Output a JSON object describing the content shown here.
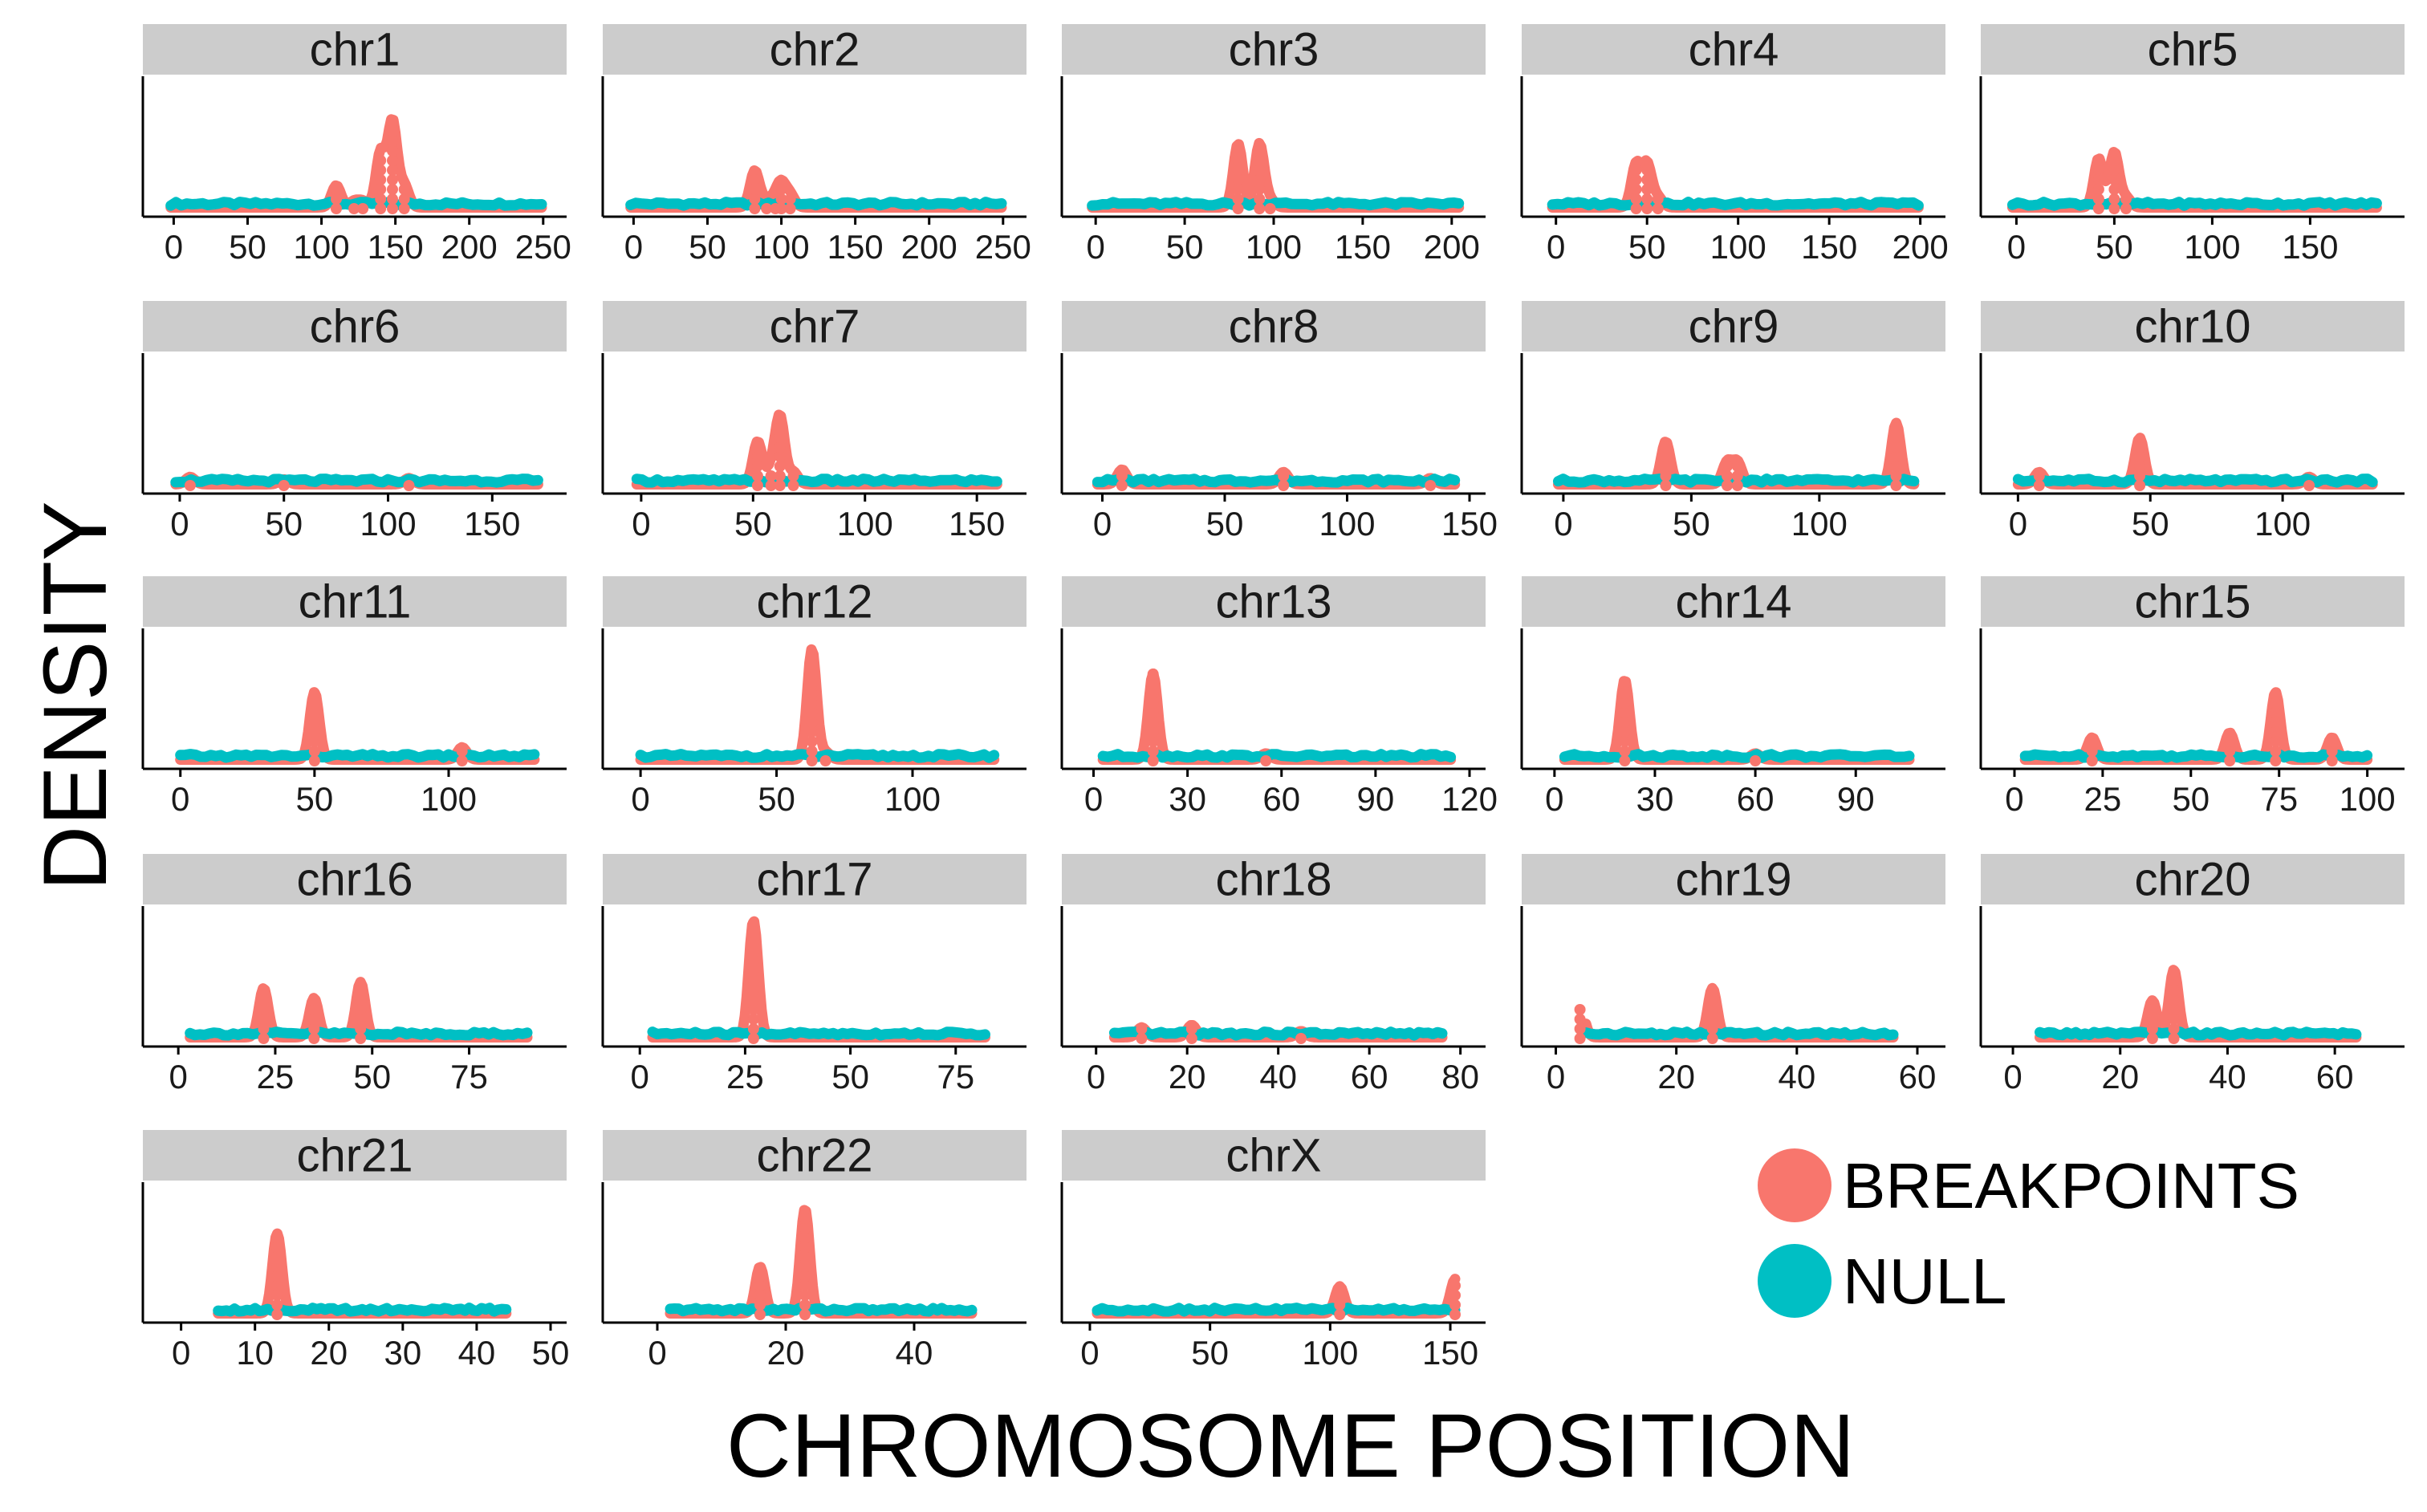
{
  "chart_data": {
    "type": "line",
    "ylabel": "DENSITY",
    "xlabel": "CHROMOSOME POSITION",
    "legend": {
      "placement": "bottom-right",
      "entries": [
        {
          "name": "BREAKPOINTS",
          "color": "#F8766D"
        },
        {
          "name": "NULL",
          "color": "#00BFC4"
        }
      ]
    },
    "strip_color": "#cccccc",
    "facets": [
      {
        "name": "chr1",
        "ticks": [
          0,
          50,
          100,
          150,
          200,
          250
        ],
        "xlim": [
          -10,
          255
        ],
        "ymax": 1,
        "series": {
          "BREAKPOINTS": [
            [
              110,
              0.18
            ],
            [
              122,
              0.05
            ],
            [
              128,
              0.05
            ],
            [
              140,
              0.45
            ],
            [
              148,
              0.7
            ],
            [
              156,
              0.18
            ]
          ],
          "NULL": []
        }
      },
      {
        "name": "chr2",
        "ticks": [
          0,
          50,
          100,
          150,
          200,
          250
        ],
        "xlim": [
          -10,
          255
        ],
        "ymax": 1,
        "series": {
          "BREAKPOINTS": [
            [
              82,
              0.3
            ],
            [
              90,
              0.06
            ],
            [
              96,
              0.06
            ],
            [
              100,
              0.18
            ],
            [
              106,
              0.1
            ]
          ],
          "NULL": []
        }
      },
      {
        "name": "chr3",
        "ticks": [
          0,
          50,
          100,
          150,
          200
        ],
        "xlim": [
          -10,
          210
        ],
        "ymax": 1,
        "series": {
          "BREAKPOINTS": [
            [
              80,
              0.52
            ],
            [
              92,
              0.52
            ],
            [
              98,
              0.06
            ]
          ],
          "NULL": []
        }
      },
      {
        "name": "chr4",
        "ticks": [
          0,
          50,
          100,
          150,
          200
        ],
        "xlim": [
          -10,
          205
        ],
        "ymax": 1,
        "series": {
          "BREAKPOINTS": [
            [
              44,
              0.35
            ],
            [
              50,
              0.35
            ],
            [
              56,
              0.08
            ]
          ],
          "NULL": []
        }
      },
      {
        "name": "chr5",
        "ticks": [
          0,
          50,
          100,
          150
        ],
        "xlim": [
          -10,
          190
        ],
        "ymax": 1,
        "series": {
          "BREAKPOINTS": [
            [
              42,
              0.4
            ],
            [
              50,
              0.45
            ],
            [
              56,
              0.08
            ]
          ],
          "NULL": []
        }
      },
      {
        "name": "chr6",
        "ticks": [
          0,
          50,
          100,
          150
        ],
        "xlim": [
          -10,
          178
        ],
        "ymax": 1,
        "series": {
          "BREAKPOINTS": [
            [
              5,
              0.06
            ],
            [
              50,
              0.04
            ],
            [
              110,
              0.05
            ]
          ],
          "NULL": []
        }
      },
      {
        "name": "chr7",
        "ticks": [
          0,
          50,
          100,
          150
        ],
        "xlim": [
          -10,
          165
        ],
        "ymax": 1,
        "series": {
          "BREAKPOINTS": [
            [
              52,
              0.35
            ],
            [
              58,
              0.12
            ],
            [
              62,
              0.55
            ],
            [
              68,
              0.1
            ]
          ],
          "NULL": []
        }
      },
      {
        "name": "chr8",
        "ticks": [
          0,
          50,
          100,
          150
        ],
        "xlim": [
          -10,
          150
        ],
        "ymax": 1,
        "series": {
          "BREAKPOINTS": [
            [
              8,
              0.12
            ],
            [
              74,
              0.1
            ],
            [
              134,
              0.05
            ]
          ],
          "NULL": []
        }
      },
      {
        "name": "chr9",
        "ticks": [
          0,
          50,
          100
        ],
        "xlim": [
          -10,
          143
        ],
        "ymax": 1,
        "series": {
          "BREAKPOINTS": [
            [
              40,
              0.35
            ],
            [
              64,
              0.18
            ],
            [
              68,
              0.18
            ],
            [
              130,
              0.5
            ]
          ],
          "NULL": []
        }
      },
      {
        "name": "chr10",
        "ticks": [
          0,
          50,
          100
        ],
        "xlim": [
          -8,
          140
        ],
        "ymax": 1,
        "series": {
          "BREAKPOINTS": [
            [
              8,
              0.1
            ],
            [
              46,
              0.38
            ],
            [
              110,
              0.06
            ]
          ],
          "NULL": []
        }
      },
      {
        "name": "chr11",
        "ticks": [
          0,
          50,
          100
        ],
        "xlim": [
          -8,
          138
        ],
        "ymax": 1,
        "series": {
          "BREAKPOINTS": [
            [
              50,
              0.55
            ],
            [
              105,
              0.1
            ]
          ],
          "NULL": []
        }
      },
      {
        "name": "chr12",
        "ticks": [
          0,
          50,
          100
        ],
        "xlim": [
          -8,
          136
        ],
        "ymax": 1,
        "series": {
          "BREAKPOINTS": [
            [
              63,
              0.9
            ],
            [
              68,
              0.06
            ]
          ],
          "NULL": []
        }
      },
      {
        "name": "chr13",
        "ticks": [
          0,
          30,
          60,
          90,
          120
        ],
        "xlim": [
          -5,
          120
        ],
        "ymax": 1,
        "series": {
          "BREAKPOINTS": [
            [
              19,
              0.7
            ],
            [
              55,
              0.05
            ]
          ],
          "NULL": []
        }
      },
      {
        "name": "chr14",
        "ticks": [
          0,
          30,
          60,
          90
        ],
        "xlim": [
          -5,
          112
        ],
        "ymax": 1,
        "series": {
          "BREAKPOINTS": [
            [
              21,
              0.65
            ],
            [
              60,
              0.05
            ]
          ],
          "NULL": []
        }
      },
      {
        "name": "chr15",
        "ticks": [
          0,
          25,
          50,
          75,
          100
        ],
        "xlim": [
          -5,
          106
        ],
        "ymax": 1,
        "series": {
          "BREAKPOINTS": [
            [
              22,
              0.18
            ],
            [
              61,
              0.22
            ],
            [
              74,
              0.55
            ],
            [
              90,
              0.18
            ]
          ],
          "NULL": []
        }
      },
      {
        "name": "chr16",
        "ticks": [
          0,
          25,
          50,
          75
        ],
        "xlim": [
          -5,
          96
        ],
        "ymax": 1,
        "series": {
          "BREAKPOINTS": [
            [
              22,
              0.4
            ],
            [
              35,
              0.32
            ],
            [
              47,
              0.45
            ]
          ],
          "NULL": []
        }
      },
      {
        "name": "chr17",
        "ticks": [
          0,
          25,
          50,
          75
        ],
        "xlim": [
          -5,
          88
        ],
        "ymax": 1,
        "series": {
          "BREAKPOINTS": [
            [
              27,
              0.95
            ]
          ],
          "NULL": []
        }
      },
      {
        "name": "chr18",
        "ticks": [
          0,
          20,
          40,
          60,
          80
        ],
        "xlim": [
          -4,
          82
        ],
        "ymax": 1,
        "series": {
          "BREAKPOINTS": [
            [
              10,
              0.08
            ],
            [
              21,
              0.1
            ],
            [
              45,
              0.05
            ]
          ],
          "NULL": []
        }
      },
      {
        "name": "chr19",
        "ticks": [
          0,
          20,
          40,
          60
        ],
        "xlim": [
          -3,
          62
        ],
        "ymax": 1,
        "series": {
          "BREAKPOINTS": [
            [
              4,
              0.25
            ],
            [
              26,
              0.4
            ]
          ],
          "NULL": []
        }
      },
      {
        "name": "chr20",
        "ticks": [
          0,
          20,
          40,
          60
        ],
        "xlim": [
          -3,
          70
        ],
        "ymax": 1,
        "series": {
          "BREAKPOINTS": [
            [
              26,
              0.3
            ],
            [
              30,
              0.55
            ]
          ],
          "NULL": []
        }
      },
      {
        "name": "chr21",
        "ticks": [
          0,
          10,
          20,
          30,
          40,
          50
        ],
        "xlim": [
          -3,
          50
        ],
        "ymax": 1,
        "series": {
          "BREAKPOINTS": [
            [
              13,
              0.65
            ]
          ],
          "NULL": []
        }
      },
      {
        "name": "chr22",
        "ticks": [
          0,
          20,
          40
        ],
        "xlim": [
          -6,
          55
        ],
        "ymax": 1,
        "series": {
          "BREAKPOINTS": [
            [
              16,
              0.38
            ],
            [
              23,
              0.85
            ]
          ],
          "NULL": []
        }
      },
      {
        "name": "chrX",
        "ticks": [
          0,
          50,
          100,
          150
        ],
        "xlim": [
          -5,
          158
        ],
        "ymax": 1,
        "series": {
          "BREAKPOINTS": [
            [
              104,
              0.22
            ],
            [
              152,
              0.28
            ]
          ],
          "NULL": []
        }
      }
    ]
  }
}
